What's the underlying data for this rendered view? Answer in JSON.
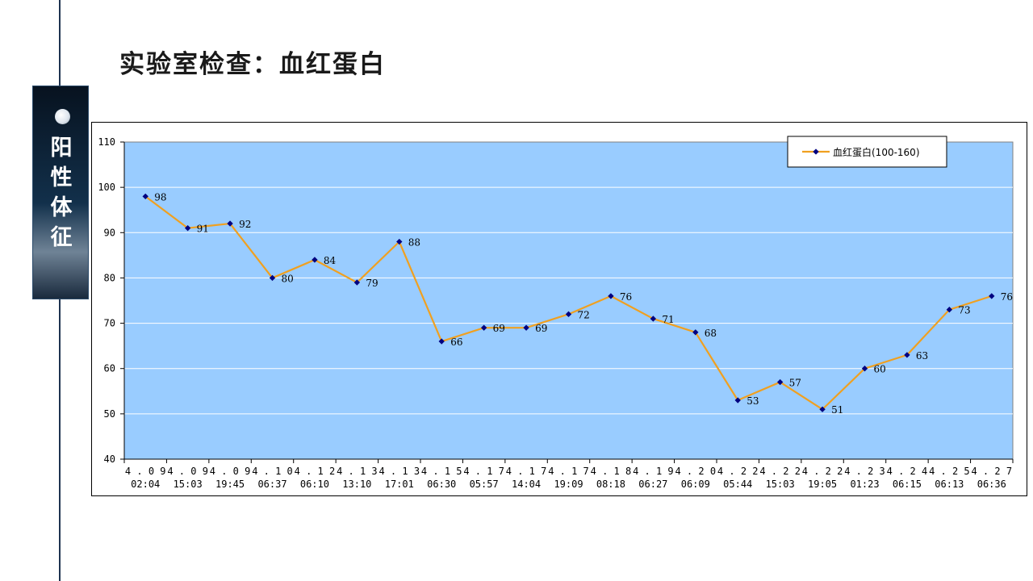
{
  "page": {
    "title": "实验室检查：血红蛋白",
    "side_label": "阳\n性\n体\n征"
  },
  "colors": {
    "plot_bg": "#99CCFF",
    "line": "#F0A020",
    "marker": "#000080",
    "grid": "#FFFFFF",
    "vertical_rule": "#1F3350"
  },
  "chart_data": {
    "type": "line",
    "title": "",
    "xlabel": "",
    "ylabel": "",
    "ylim": [
      40,
      110
    ],
    "yticks": [
      40,
      50,
      60,
      70,
      80,
      90,
      100,
      110
    ],
    "grid": true,
    "legend_position": "top-right",
    "categories": [
      [
        "4.09",
        "02:04"
      ],
      [
        "4.09",
        "15:03"
      ],
      [
        "4.09",
        "19:45"
      ],
      [
        "4.10",
        "06:37"
      ],
      [
        "4.12",
        "06:10"
      ],
      [
        "4.13",
        "13:10"
      ],
      [
        "4.13",
        "17:01"
      ],
      [
        "4.15",
        "06:30"
      ],
      [
        "4.17",
        "05:57"
      ],
      [
        "4.17",
        "14:04"
      ],
      [
        "4.17",
        "19:09"
      ],
      [
        "4.18",
        "08:18"
      ],
      [
        "4.19",
        "06:27"
      ],
      [
        "4.20",
        "06:09"
      ],
      [
        "4.22",
        "05:44"
      ],
      [
        "4.22",
        "15:03"
      ],
      [
        "4.22",
        "19:05"
      ],
      [
        "4.23",
        "01:23"
      ],
      [
        "4.24",
        "06:15"
      ],
      [
        "4.25",
        "06:13"
      ],
      [
        "4.27",
        "06:36"
      ]
    ],
    "series": [
      {
        "name": "血红蛋白(100-160)",
        "values": [
          98,
          91,
          92,
          80,
          84,
          79,
          88,
          66,
          69,
          69,
          72,
          76,
          71,
          68,
          53,
          57,
          51,
          60,
          63,
          73,
          76
        ]
      }
    ]
  }
}
